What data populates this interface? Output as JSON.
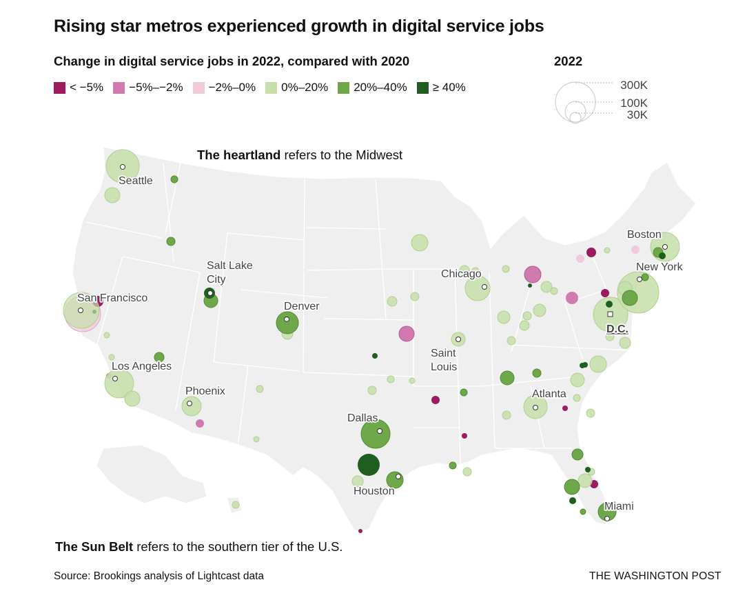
{
  "title": "Rising star metros experienced growth in digital service jobs",
  "legend": {
    "heading": "Change in digital service jobs in 2022, compared with 2020",
    "items": [
      {
        "label": "< −5%",
        "color": "#9c1a5e"
      },
      {
        "label": "−5%–−2%",
        "color": "#d07aaf"
      },
      {
        "label": "−2%–0%",
        "color": "#f1c8dc"
      },
      {
        "label": "0%–20%",
        "color": "#c5dfa9"
      },
      {
        "label": "20%–40%",
        "color": "#6ea84a"
      },
      {
        "label": "≥ 40%",
        "color": "#1e5e1e"
      }
    ],
    "size_title": "2022",
    "size_labels": [
      "300K",
      "100K",
      "30K"
    ]
  },
  "annotations": {
    "top_bold": "The heartland",
    "top_rest": " refers to the Midwest",
    "bottom_bold": "The Sun Belt",
    "bottom_rest": " refers to the southern tier of the U.S."
  },
  "cities": {
    "seattle": "Seattle",
    "salt_lake_1": "Salt Lake",
    "salt_lake_2": "City",
    "san_francisco": "San Francisco",
    "denver": "Denver",
    "los_angeles": "Los Angeles",
    "phoenix": "Phoenix",
    "dallas": "Dallas",
    "houston": "Houston",
    "chicago": "Chicago",
    "saint_louis_1": "Saint",
    "saint_louis_2": "Louis",
    "atlanta": "Atlanta",
    "miami": "Miami",
    "boston": "Boston",
    "new_york": "New York",
    "dc": "D.C."
  },
  "footer": {
    "source": "Source: Brookings analysis of Lightcast data",
    "credit": "THE WASHINGTON POST"
  },
  "colors": {
    "map_fill": "#efefef",
    "state_border": "#ffffff",
    "pink_dark": "#9c1a5e",
    "pink_mid": "#d07aaf",
    "pink_light": "#f1c8dc",
    "green_light": "#c5dfa9",
    "green_mid": "#6ea84a",
    "green_dark": "#1e5e1e"
  }
}
